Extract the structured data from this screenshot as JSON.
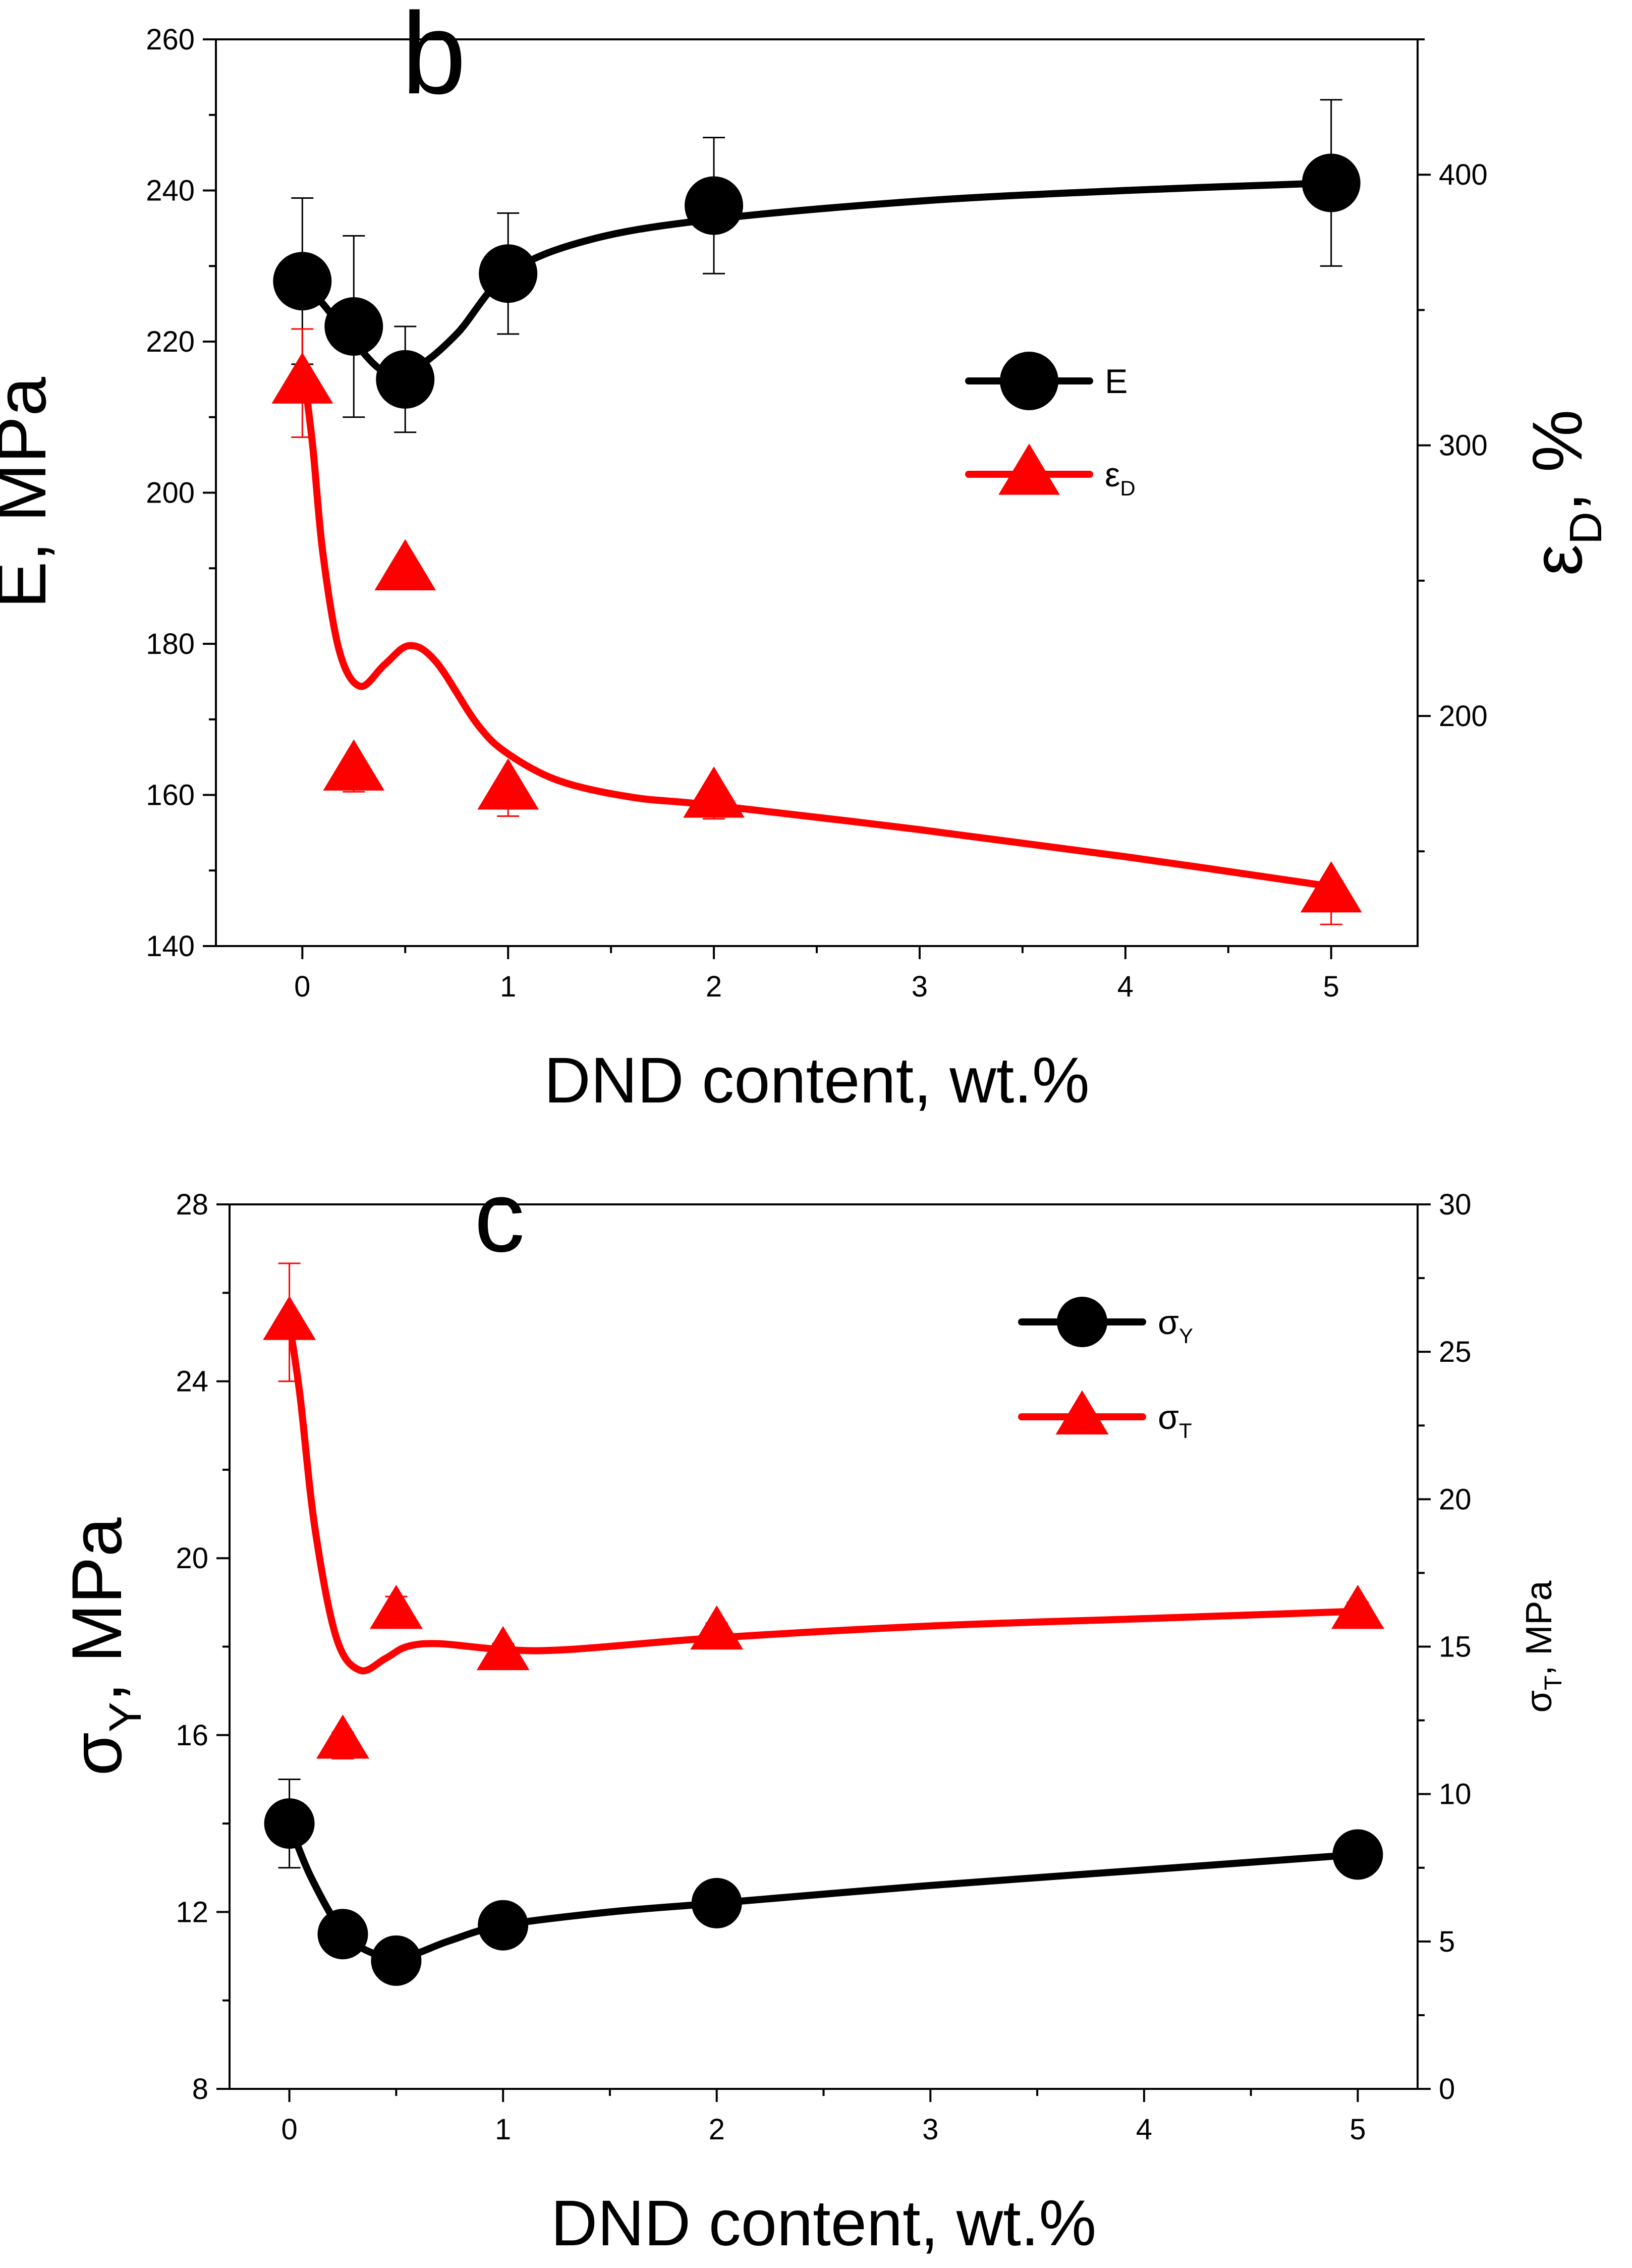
{
  "chart_data": [
    {
      "type": "line",
      "panel_label": "b",
      "title": "",
      "xlabel": "DND content, wt.%",
      "ylabel_left": "E, MPa",
      "ylabel_right": {
        "main": "ε",
        "sub": "D",
        "tail": ", %"
      },
      "x_tick_labels": [
        "0",
        "1",
        "2",
        "3",
        "4",
        "5"
      ],
      "x_tick_positions": [
        0,
        1,
        2,
        3,
        4,
        5
      ],
      "x_data_positions": [
        0,
        0.25,
        0.5,
        1,
        2,
        5
      ],
      "x_content_values": [
        0,
        0.25,
        0.5,
        1,
        2,
        5
      ],
      "ylim_left": [
        140,
        260
      ],
      "yticks_left": [
        "140",
        "160",
        "180",
        "200",
        "220",
        "240",
        "260"
      ],
      "ylim_right": [
        115,
        450
      ],
      "yticks_right": [
        "200",
        "300",
        "400"
      ],
      "series": [
        {
          "name": "E",
          "name_sub": "",
          "axis": "left",
          "marker": "circle",
          "color": "#000000",
          "values": [
            228,
            222,
            215,
            229,
            238,
            241
          ],
          "err_low": [
            11,
            12,
            7,
            8,
            9,
            11
          ],
          "err_high": [
            11,
            12,
            7,
            8,
            9,
            11
          ],
          "fit": [
            [
              0,
              228
            ],
            [
              0.1,
              225
            ],
            [
              0.25,
              220
            ],
            [
              0.4,
              216
            ],
            [
              0.55,
              216.5
            ],
            [
              0.75,
              221
            ],
            [
              1,
              229
            ],
            [
              1.4,
              233.5
            ],
            [
              2,
              236.2
            ],
            [
              3,
              238.6
            ],
            [
              4,
              240
            ],
            [
              5,
              241
            ]
          ]
        },
        {
          "name": "ε",
          "name_sub": "D",
          "axis": "right",
          "marker": "triangle",
          "color": "#ff0000",
          "values": [
            323,
            180,
            254,
            173,
            170,
            135
          ],
          "err_low": [
            20,
            8,
            5,
            10,
            8,
            12
          ],
          "err_high": [
            20,
            3,
            3,
            3,
            3,
            3
          ],
          "fit": [
            [
              0,
              331
            ],
            [
              0.05,
              300
            ],
            [
              0.1,
              260
            ],
            [
              0.18,
              224
            ],
            [
              0.28,
              211
            ],
            [
              0.4,
              219
            ],
            [
              0.52,
              226
            ],
            [
              0.65,
              220
            ],
            [
              0.85,
              197
            ],
            [
              1.0,
              186
            ],
            [
              1.25,
              176
            ],
            [
              1.6,
              170
            ],
            [
              2.0,
              167
            ],
            [
              3.0,
              158
            ],
            [
              4.0,
              148
            ],
            [
              5.0,
              137
            ]
          ]
        }
      ],
      "legend_position": "top-right"
    },
    {
      "type": "line",
      "panel_label": "c",
      "title": "",
      "xlabel": "DND content, wt.%",
      "ylabel_left": {
        "main": "σ",
        "sub": "Y",
        "tail": ", MPa"
      },
      "ylabel_right": {
        "main": "σ",
        "sub": "T",
        "tail": ", MPa"
      },
      "x_tick_labels": [
        "0",
        "1",
        "2",
        "3",
        "4",
        "5"
      ],
      "x_tick_positions": [
        0,
        1,
        2,
        3,
        4,
        5
      ],
      "x_data_positions": [
        0,
        0.25,
        0.5,
        1,
        2,
        5
      ],
      "x_content_values": [
        0,
        0.25,
        0.5,
        1,
        2,
        5
      ],
      "ylim_left": [
        8,
        28
      ],
      "yticks_left": [
        "8",
        "12",
        "16",
        "20",
        "24",
        "28"
      ],
      "ylim_right": [
        0,
        30
      ],
      "yticks_right": [
        "0",
        "5",
        "10",
        "15",
        "20",
        "25",
        "30"
      ],
      "series": [
        {
          "name": "σ",
          "name_sub": "Y",
          "axis": "left",
          "marker": "circle",
          "color": "#000000",
          "values": [
            14.0,
            11.5,
            10.9,
            11.7,
            12.2,
            13.3
          ],
          "err_low": [
            1.0,
            0,
            0,
            0,
            0,
            0
          ],
          "err_high": [
            1.0,
            0,
            0,
            0,
            0,
            0
          ],
          "fit": [
            [
              0,
              14.0
            ],
            [
              0.1,
              12.8
            ],
            [
              0.25,
              11.55
            ],
            [
              0.4,
              11.05
            ],
            [
              0.55,
              11.0
            ],
            [
              0.75,
              11.35
            ],
            [
              1,
              11.7
            ],
            [
              1.5,
              12.0
            ],
            [
              2,
              12.2
            ],
            [
              3,
              12.6
            ],
            [
              4,
              12.95
            ],
            [
              5,
              13.3
            ]
          ]
        },
        {
          "name": "σ",
          "name_sub": "T",
          "axis": "right",
          "marker": "triangle",
          "color": "#ff0000",
          "values": [
            26.0,
            11.8,
            16.2,
            14.8,
            15.5,
            16.2
          ],
          "err_low": [
            2.0,
            0.6,
            0.4,
            0.5,
            0.4,
            0.5
          ],
          "err_high": [
            2.0,
            0.3,
            0.5,
            0.3,
            0.3,
            0.3
          ],
          "fit": [
            [
              0,
              26.0
            ],
            [
              0.05,
              23.5
            ],
            [
              0.12,
              19.0
            ],
            [
              0.22,
              15.3
            ],
            [
              0.33,
              14.2
            ],
            [
              0.45,
              14.6
            ],
            [
              0.55,
              15.0
            ],
            [
              0.7,
              15.1
            ],
            [
              1.0,
              14.9
            ],
            [
              1.3,
              14.9
            ],
            [
              2,
              15.3
            ],
            [
              3,
              15.7
            ],
            [
              4,
              15.95
            ],
            [
              5,
              16.2
            ]
          ]
        }
      ],
      "legend_position": "top-right"
    }
  ]
}
